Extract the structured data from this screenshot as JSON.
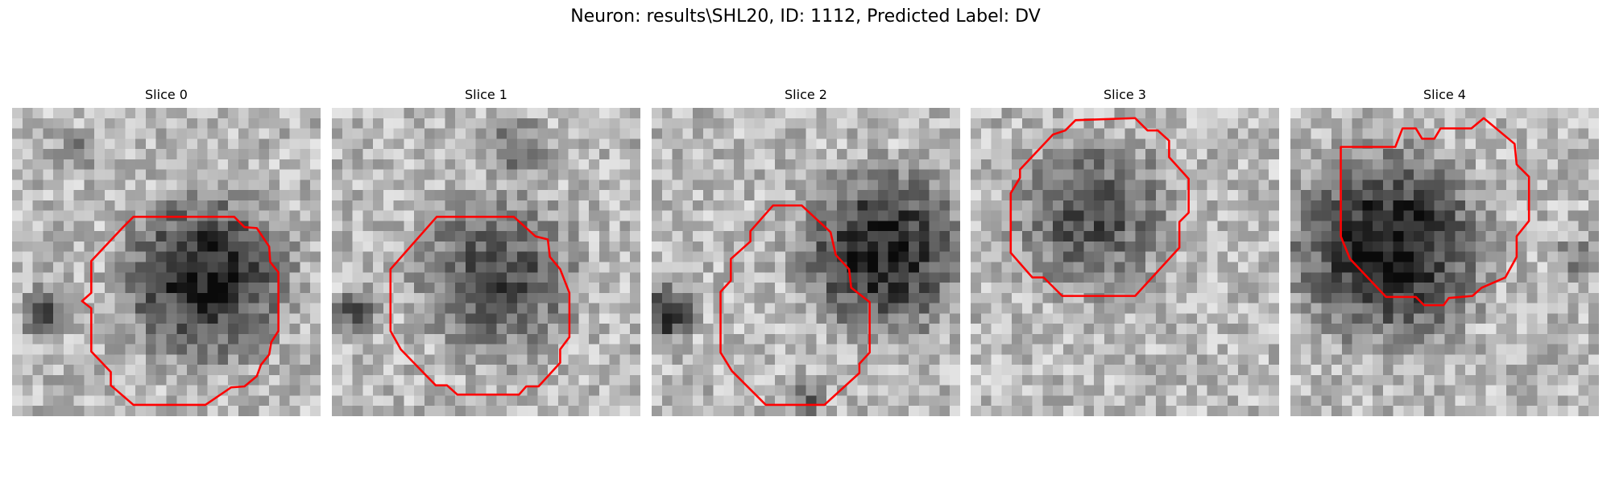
{
  "title": "Neuron: results\\SHL20, ID: 1112, Predicted Label: DV",
  "panels": [
    {
      "title": "Slice 0"
    },
    {
      "title": "Slice 1"
    },
    {
      "title": "Slice 2"
    },
    {
      "title": "Slice 3"
    },
    {
      "title": "Slice 4"
    }
  ]
}
